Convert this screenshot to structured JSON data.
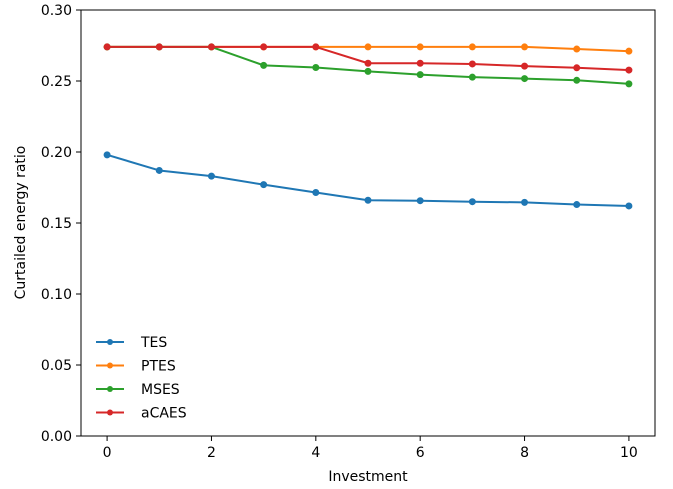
{
  "chart_data": {
    "type": "line",
    "title": "",
    "xlabel": "Investment",
    "ylabel": "Curtailed energy ratio",
    "xlim": [
      -0.5,
      10.5
    ],
    "ylim": [
      0.0,
      0.3
    ],
    "xticks": [
      0,
      2,
      4,
      6,
      8,
      10
    ],
    "xtick_labels": [
      "0",
      "2",
      "4",
      "6",
      "8",
      "10"
    ],
    "yticks": [
      0.0,
      0.05,
      0.1,
      0.15,
      0.2,
      0.25,
      0.3
    ],
    "ytick_labels": [
      "0.00",
      "0.05",
      "0.10",
      "0.15",
      "0.20",
      "0.25",
      "0.30"
    ],
    "grid": false,
    "legend_position": "lower-left",
    "x": [
      0,
      1,
      2,
      3,
      4,
      5,
      6,
      7,
      8,
      9,
      10
    ],
    "series": [
      {
        "name": "TES",
        "color": "#1f77b4",
        "marker": "circle",
        "values": [
          0.198,
          0.187,
          0.183,
          0.177,
          0.1715,
          0.166,
          0.1657,
          0.165,
          0.1645,
          0.163,
          0.162
        ]
      },
      {
        "name": "PTES",
        "color": "#ff7f0e",
        "marker": "circle",
        "values": [
          0.274,
          0.274,
          0.274,
          0.274,
          0.274,
          0.274,
          0.274,
          0.274,
          0.274,
          0.2725,
          0.271
        ]
      },
      {
        "name": "MSES",
        "color": "#2ca02c",
        "marker": "circle",
        "values": [
          0.274,
          0.274,
          0.274,
          0.261,
          0.2595,
          0.2568,
          0.2545,
          0.2527,
          0.2517,
          0.2505,
          0.248
        ]
      },
      {
        "name": "aCAES",
        "color": "#d62728",
        "marker": "circle",
        "values": [
          0.274,
          0.274,
          0.274,
          0.274,
          0.274,
          0.2625,
          0.2625,
          0.262,
          0.2605,
          0.2593,
          0.2577
        ]
      }
    ]
  }
}
